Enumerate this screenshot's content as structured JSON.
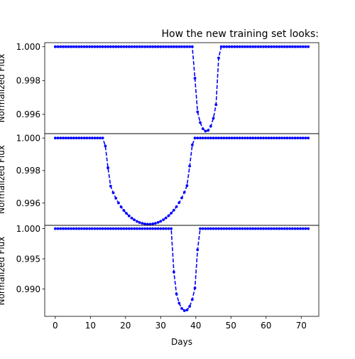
{
  "chart_data": {
    "type": "line",
    "title": "How the new training set looks:",
    "xlabel": "Days",
    "xlim": [
      -3,
      75
    ],
    "xticks": [
      0,
      10,
      20,
      30,
      40,
      50,
      60,
      70
    ],
    "line_style": "dashed",
    "marker": "dot",
    "color": "#0000ff",
    "panels": [
      {
        "ylabel": "Normalized Flux",
        "ylim": [
          0.99486,
          1.00024
        ],
        "yticks": [
          "0.996",
          "0.998",
          "1.000"
        ],
        "transit": {
          "start": 39.3,
          "end": 46.6,
          "depth": 0.005,
          "ingress": 0.8
        },
        "x": [
          0.0,
          0.75,
          1.5,
          2.25,
          3.0,
          3.75,
          4.5,
          5.25,
          6.0,
          6.75,
          7.5,
          8.25,
          9.0,
          9.75,
          10.5,
          11.25,
          12.0,
          12.75,
          13.5,
          14.25,
          15.0,
          15.75,
          16.5,
          17.25,
          18.0,
          18.75,
          19.5,
          20.25,
          21.0,
          21.75,
          22.5,
          23.25,
          24.0,
          24.75,
          25.5,
          26.25,
          27.0,
          27.75,
          28.5,
          29.25,
          30.0,
          30.75,
          31.5,
          32.25,
          33.0,
          33.75,
          34.5,
          35.25,
          36.0,
          36.75,
          37.5,
          38.25,
          39.0,
          39.75,
          40.5,
          41.25,
          42.0,
          42.75,
          43.5,
          44.25,
          45.0,
          45.75,
          46.5,
          47.25,
          48.0,
          48.75,
          49.5,
          50.25,
          51.0,
          51.75,
          52.5,
          53.25,
          54.0,
          54.75,
          55.5,
          56.25,
          57.0,
          57.75,
          58.5,
          59.25,
          60.0,
          60.75,
          61.5,
          62.25,
          63.0,
          63.75,
          64.5,
          65.25,
          66.0,
          66.75,
          67.5,
          68.25,
          69.0,
          69.75,
          70.5,
          71.25,
          72.0
        ]
      },
      {
        "ylabel": "Normalized Flux",
        "ylim": [
          0.99463,
          1.00027
        ],
        "yticks": [
          "0.996",
          "0.998",
          "1.000"
        ],
        "transit": {
          "start": 14.2,
          "end": 39.0,
          "depth": 0.0053,
          "ingress": 1.2
        },
        "x": [
          0.0,
          0.75,
          1.5,
          2.25,
          3.0,
          3.75,
          4.5,
          5.25,
          6.0,
          6.75,
          7.5,
          8.25,
          9.0,
          9.75,
          10.5,
          11.25,
          12.0,
          12.75,
          13.5,
          14.25,
          15.0,
          15.75,
          16.5,
          17.25,
          18.0,
          18.75,
          19.5,
          20.25,
          21.0,
          21.75,
          22.5,
          23.25,
          24.0,
          24.75,
          25.5,
          26.25,
          27.0,
          27.75,
          28.5,
          29.25,
          30.0,
          30.75,
          31.5,
          32.25,
          33.0,
          33.75,
          34.5,
          35.25,
          36.0,
          36.75,
          37.5,
          38.25,
          39.0,
          39.75,
          40.5,
          41.25,
          42.0,
          42.75,
          43.5,
          44.25,
          45.0,
          45.75,
          46.5,
          47.25,
          48.0,
          48.75,
          49.5,
          50.25,
          51.0,
          51.75,
          52.5,
          53.25,
          54.0,
          54.75,
          55.5,
          56.25,
          57.0,
          57.75,
          58.5,
          59.25,
          60.0,
          60.75,
          61.5,
          62.25,
          63.0,
          63.75,
          64.5,
          65.25,
          66.0,
          66.75,
          67.5,
          68.25,
          69.0,
          69.75,
          70.5,
          71.25,
          72.0
        ]
      },
      {
        "ylabel": "Normalized Flux",
        "ylim": [
          0.98547,
          1.00054
        ],
        "yticks": [
          "0.990",
          "0.995",
          "1.000"
        ],
        "transit": {
          "start": 33.1,
          "end": 40.8,
          "depth": 0.0136,
          "ingress": 0.8
        },
        "x": [
          0.0,
          0.75,
          1.5,
          2.25,
          3.0,
          3.75,
          4.5,
          5.25,
          6.0,
          6.75,
          7.5,
          8.25,
          9.0,
          9.75,
          10.5,
          11.25,
          12.0,
          12.75,
          13.5,
          14.25,
          15.0,
          15.75,
          16.5,
          17.25,
          18.0,
          18.75,
          19.5,
          20.25,
          21.0,
          21.75,
          22.5,
          23.25,
          24.0,
          24.75,
          25.5,
          26.25,
          27.0,
          27.75,
          28.5,
          29.25,
          30.0,
          30.75,
          31.5,
          32.25,
          33.0,
          33.75,
          34.5,
          35.25,
          36.0,
          36.75,
          37.5,
          38.25,
          39.0,
          39.75,
          40.5,
          41.25,
          42.0,
          42.75,
          43.5,
          44.25,
          45.0,
          45.75,
          46.5,
          47.25,
          48.0,
          48.75,
          49.5,
          50.25,
          51.0,
          51.75,
          52.5,
          53.25,
          54.0,
          54.75,
          55.5,
          56.25,
          57.0,
          57.75,
          58.5,
          59.25,
          60.0,
          60.75,
          61.5,
          62.25,
          63.0,
          63.75,
          64.5,
          65.25,
          66.0,
          66.75,
          67.5,
          68.25,
          69.0,
          69.75,
          70.5,
          71.25,
          72.0
        ]
      }
    ]
  }
}
